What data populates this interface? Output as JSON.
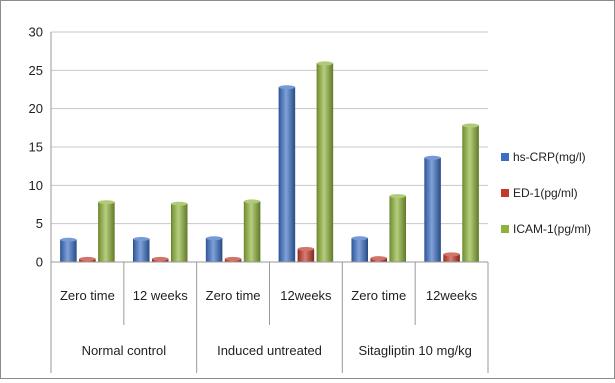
{
  "chart_data": {
    "type": "bar",
    "title": "",
    "xlabel": "",
    "ylabel": "",
    "ylim": [
      0,
      30
    ],
    "yticks": [
      0,
      5,
      10,
      15,
      20,
      25,
      30
    ],
    "grid": "horizontal",
    "legend_position": "right",
    "categories": [
      "Zero time",
      "12 weeks",
      "Zero time",
      "12weeks",
      "Zero time",
      "12weeks"
    ],
    "groups": [
      {
        "label": "Normal control",
        "span": 2
      },
      {
        "label": "Induced untreated",
        "span": 2
      },
      {
        "label": "Sitagliptin 10 mg/kg",
        "span": 2
      }
    ],
    "series": [
      {
        "name": "hs-CRP(mg/l)",
        "color": "#3b6fc4",
        "values": [
          2.9,
          3.0,
          3.1,
          22.8,
          3.1,
          13.6
        ]
      },
      {
        "name": "ED-1(pg/ml)",
        "color": "#c0392b",
        "values": [
          0.4,
          0.4,
          0.4,
          1.7,
          0.5,
          1.0
        ]
      },
      {
        "name": "ICAM-1(pg/ml)",
        "color": "#8fb33a",
        "values": [
          7.8,
          7.6,
          7.9,
          25.9,
          8.6,
          17.8
        ]
      }
    ]
  }
}
